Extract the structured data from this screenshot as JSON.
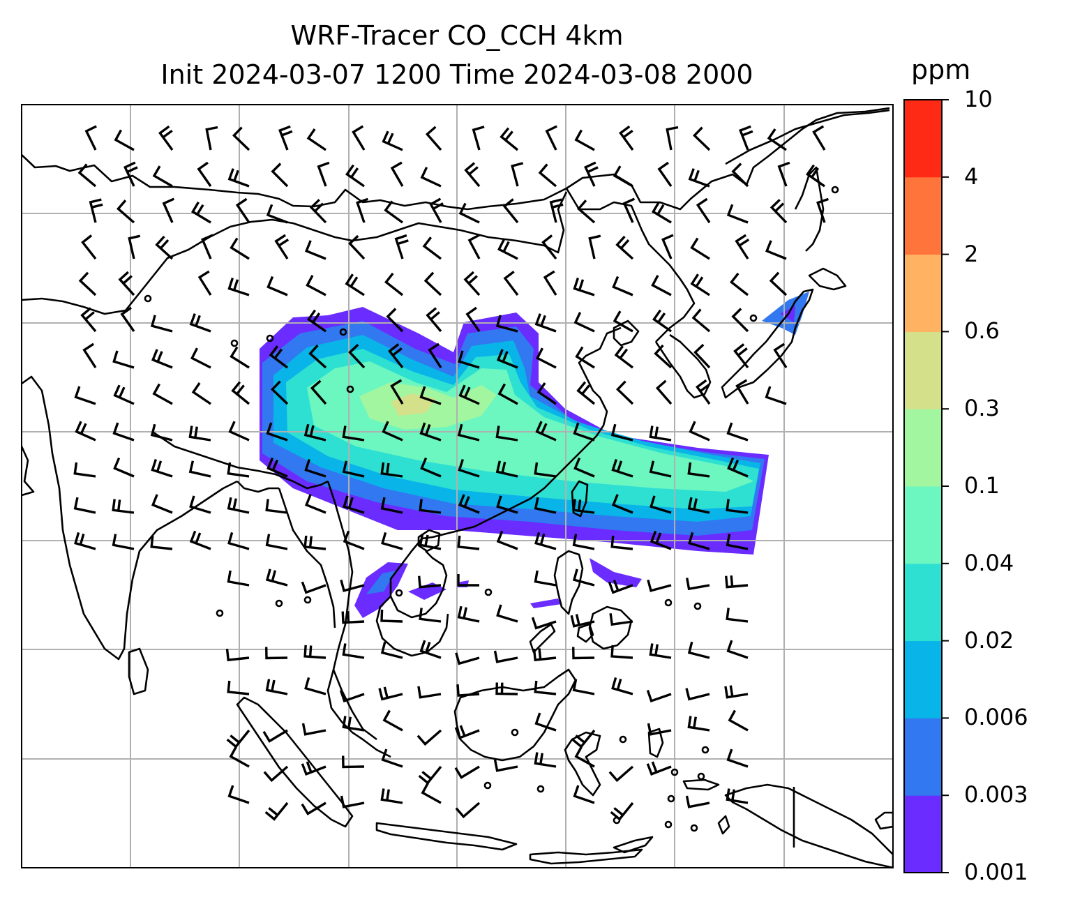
{
  "title": {
    "line1": "WRF-Tracer CO_CCH 4km",
    "line2": "Init 2024-03-07 1200 Time 2024-03-08 2000"
  },
  "colorbar": {
    "unit": "ppm",
    "levels": [
      "0.001",
      "0.003",
      "0.006",
      "0.02",
      "0.04",
      "0.1",
      "0.3",
      "0.6",
      "2",
      "4",
      "10"
    ],
    "colors": [
      "#6a2cff",
      "#3278f0",
      "#08b4e8",
      "#2ee0d2",
      "#6cf6c0",
      "#a2f6a0",
      "#d4e08a",
      "#feb262",
      "#ff743a",
      "#ff2a16"
    ]
  },
  "map": {
    "gridlines": true,
    "coastline_color": "#000000",
    "grid_color": "#b0b0b0"
  }
}
